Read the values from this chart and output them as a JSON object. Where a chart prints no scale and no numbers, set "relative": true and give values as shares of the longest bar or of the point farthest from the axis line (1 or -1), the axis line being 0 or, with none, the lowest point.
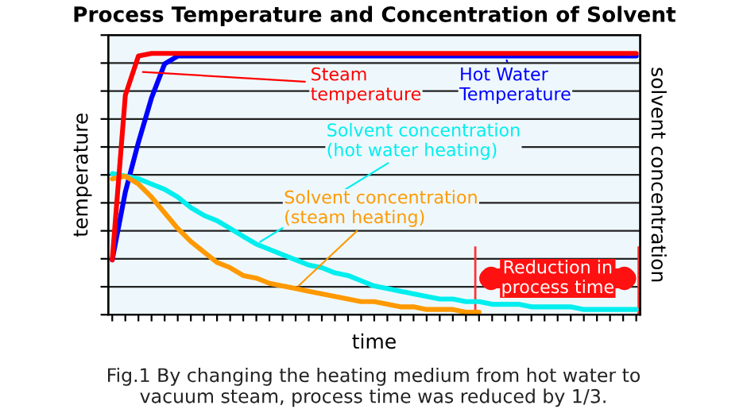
{
  "chart_data": {
    "type": "line",
    "relative": true,
    "title": "Process Temperature and Concentration of Solvent",
    "xlabel": "time",
    "ylabel": "temperature",
    "y2label": "solvent concentration",
    "categories": [
      null,
      null,
      null,
      null,
      null,
      null,
      null,
      null,
      null,
      null,
      null,
      null,
      null,
      null,
      null,
      null,
      null,
      null,
      null,
      null,
      null,
      null,
      null,
      null,
      null,
      null,
      null,
      null,
      null,
      null,
      null,
      null,
      null,
      null,
      null,
      null,
      null,
      null,
      null,
      null,
      null
    ],
    "series": [
      {
        "name": "Steam\ntemperature",
        "color": "#ff0000",
        "values": [
          0.21,
          0.84,
          0.99,
          1,
          1,
          1,
          1,
          1,
          1,
          1,
          1,
          1,
          1,
          1,
          1,
          1,
          1,
          1,
          1,
          1,
          1,
          1,
          1,
          1,
          1,
          1,
          1,
          1,
          1,
          1,
          1,
          1,
          1,
          1,
          1,
          1,
          1,
          1,
          1,
          1,
          1
        ]
      },
      {
        "name": "Hot Water\nTemperature",
        "color": "#0000ff",
        "values": [
          0.21,
          0.47,
          0.66,
          0.83,
          0.96,
          0.99,
          0.99,
          0.99,
          0.99,
          0.99,
          0.99,
          0.99,
          0.99,
          0.99,
          0.99,
          0.99,
          0.99,
          0.99,
          0.99,
          0.99,
          0.99,
          0.99,
          0.99,
          0.99,
          0.99,
          0.99,
          0.99,
          0.99,
          0.99,
          0.99,
          0.99,
          0.99,
          0.99,
          0.99,
          0.99,
          0.99,
          0.99,
          0.99,
          0.99,
          0.99,
          0.99
        ]
      },
      {
        "name": "Solvent concentration\n(hot water heating)",
        "color": "#00eeee",
        "values": [
          0.54,
          0.53,
          0.52,
          0.5,
          0.48,
          0.45,
          0.41,
          0.38,
          0.36,
          0.33,
          0.3,
          0.27,
          0.25,
          0.23,
          0.21,
          0.19,
          0.18,
          0.16,
          0.15,
          0.13,
          0.11,
          0.1,
          0.09,
          0.08,
          0.07,
          0.06,
          0.06,
          0.05,
          0.05,
          0.04,
          0.04,
          0.04,
          0.03,
          0.03,
          0.03,
          0.03,
          0.02,
          0.02,
          0.02,
          0.02,
          0.02
        ]
      },
      {
        "name": "Solvent concentration\n(steam heating)",
        "color": "#ff9900",
        "values": [
          0.52,
          0.53,
          0.5,
          0.45,
          0.39,
          0.33,
          0.28,
          0.24,
          0.2,
          0.18,
          0.15,
          0.14,
          0.12,
          0.11,
          0.1,
          0.09,
          0.08,
          0.07,
          0.06,
          0.05,
          0.05,
          0.04,
          0.03,
          0.03,
          0.02,
          0.02,
          0.02,
          0.01,
          0.01,
          null,
          null,
          null,
          null,
          null,
          null,
          null,
          null,
          null,
          null,
          null,
          null
        ]
      }
    ],
    "grid": "y",
    "annotations": [
      "Reduction in\nprocess time",
      "Fig.1 By changing the heating medium from hot water to\nvacuum steam, process time was reduced by 1/3."
    ]
  }
}
